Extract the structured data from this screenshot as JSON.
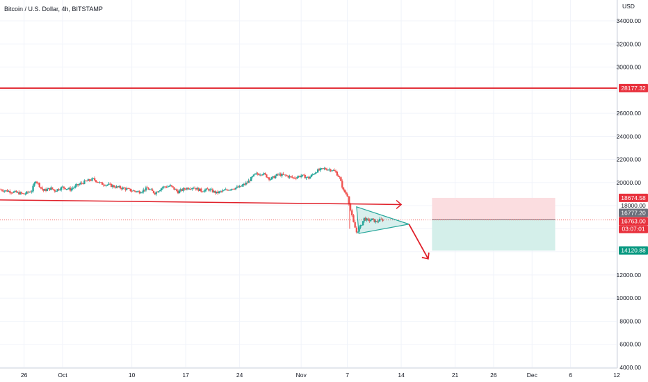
{
  "header": {
    "title": "Bitcoin / U.S. Dollar, 4h, BITSTAMP"
  },
  "colors": {
    "up": "#26a69a",
    "down": "#ef5350",
    "red_line": "#e0202a",
    "grid": "#f0f3fa",
    "target_zone": "#d4efea",
    "stop_zone": "#fbdde0",
    "tag_red": "#e8313d",
    "tag_green": "#089981",
    "tag_gray": "#6b6f7a"
  },
  "chart_data": {
    "type": "candlestick",
    "title": "Bitcoin / U.S. Dollar, 4h, BITSTAMP",
    "ylabel": "USD",
    "ylim": [
      4000,
      36000
    ],
    "y_ticks": [
      "34000.00",
      "32000.00",
      "30000.00",
      "26000.00",
      "24000.00",
      "22000.00",
      "20000.00",
      "12000.00",
      "10000.00",
      "8000.00",
      "6000.00",
      "4000.00"
    ],
    "y_tick_values": [
      34000,
      32000,
      30000,
      26000,
      24000,
      22000,
      20000,
      12000,
      10000,
      8000,
      6000,
      4000
    ],
    "x_ticks": [
      {
        "label": "26",
        "day": -5
      },
      {
        "label": "Oct",
        "day": 0
      },
      {
        "label": "10",
        "day": 9
      },
      {
        "label": "17",
        "day": 16
      },
      {
        "label": "24",
        "day": 23
      },
      {
        "label": "Nov",
        "day": 31
      },
      {
        "label": "7",
        "day": 37
      },
      {
        "label": "14",
        "day": 44
      },
      {
        "label": "21",
        "day": 51
      },
      {
        "label": "26",
        "day": 56
      },
      {
        "label": "Dec",
        "day": 61
      },
      {
        "label": "6",
        "day": 66
      },
      {
        "label": "12",
        "day": 72
      }
    ],
    "price_path": [
      [
        -8.2,
        19400
      ],
      [
        -6.5,
        19200
      ],
      [
        -5,
        19000
      ],
      [
        -4,
        19300
      ],
      [
        -3.5,
        20200
      ],
      [
        -2.5,
        19300
      ],
      [
        -1.5,
        19500
      ],
      [
        -1,
        19300
      ],
      [
        0,
        19600
      ],
      [
        1,
        19400
      ],
      [
        2,
        19800
      ],
      [
        3,
        20100
      ],
      [
        4,
        20300
      ],
      [
        5,
        19900
      ],
      [
        6,
        19800
      ],
      [
        7,
        19600
      ],
      [
        8,
        19500
      ],
      [
        9,
        19300
      ],
      [
        10,
        19200
      ],
      [
        11,
        19500
      ],
      [
        12,
        19100
      ],
      [
        13,
        19600
      ],
      [
        14,
        19700
      ],
      [
        15,
        19200
      ],
      [
        16,
        19500
      ],
      [
        17,
        19600
      ],
      [
        18,
        19300
      ],
      [
        19,
        19400
      ],
      [
        20,
        19100
      ],
      [
        21,
        19300
      ],
      [
        22,
        19500
      ],
      [
        23,
        19600
      ],
      [
        24,
        20000
      ],
      [
        25,
        20700
      ],
      [
        26,
        20800
      ],
      [
        27,
        20300
      ],
      [
        28,
        20700
      ],
      [
        29,
        20600
      ],
      [
        30,
        20400
      ],
      [
        31,
        20600
      ],
      [
        32,
        20400
      ],
      [
        33,
        21000
      ],
      [
        34,
        21200
      ],
      [
        35,
        21100
      ],
      [
        35.5,
        20900
      ],
      [
        36,
        20400
      ],
      [
        36.5,
        19300
      ],
      [
        37,
        18900
      ],
      [
        37.4,
        17600
      ],
      [
        37.8,
        16500
      ],
      [
        38.2,
        15700
      ],
      [
        38.7,
        16200
      ],
      [
        39.2,
        16900
      ],
      [
        39.7,
        16700
      ],
      [
        40.2,
        16800
      ],
      [
        40.7,
        16600
      ],
      [
        41.2,
        16750
      ],
      [
        41.6,
        16763
      ]
    ],
    "spike": {
      "day": 37.3,
      "high": 18800,
      "low": 16000
    },
    "breakout_line": {
      "start": [
        -8.2,
        18500
      ],
      "end": [
        44,
        18100
      ]
    },
    "horizontal_level": 28177.32,
    "triangle": {
      "apex_day": 45,
      "apex_price": 16400,
      "upper_start": [
        38.2,
        17900
      ],
      "lower_start": [
        38.5,
        15600
      ]
    },
    "projection_arrow": {
      "from": [
        45,
        16400
      ],
      "to": [
        47.5,
        13400
      ]
    },
    "position": {
      "start_day": 48,
      "end_day": 64,
      "entry": 16777.2,
      "stop": 18674.58,
      "target": 14120.88
    },
    "dotted_level": 16763.0
  },
  "price_tags": {
    "level": "28177.32",
    "stop": "18674.58",
    "round": "18000.00",
    "entry": "16777.20",
    "last": "16763.00",
    "countdown": "03:07:01",
    "target": "14120.88"
  },
  "axis": {
    "currency": "USD"
  }
}
